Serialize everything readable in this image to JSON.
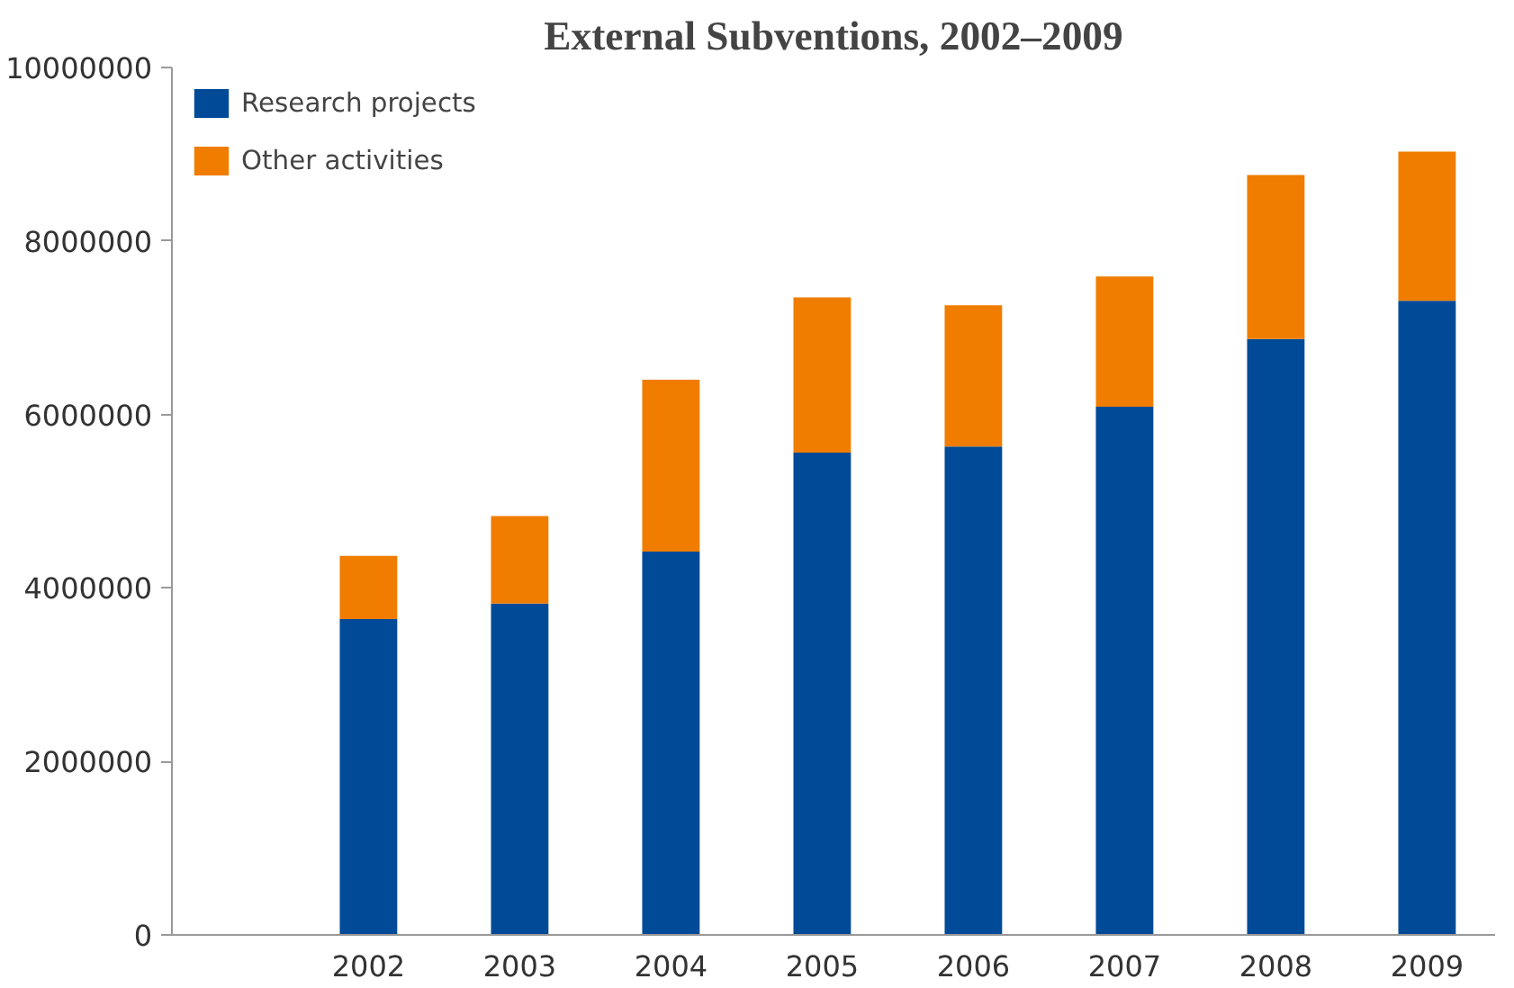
{
  "chart_data": {
    "type": "bar",
    "title": "External Subventions, 2002–2009",
    "stacked": true,
    "categories": [
      "2002",
      "2003",
      "2004",
      "2005",
      "2006",
      "2007",
      "2008",
      "2009"
    ],
    "series": [
      {
        "name": "Research projects",
        "color": "#004a97",
        "values": [
          3640000,
          3820000,
          4420000,
          5560000,
          5630000,
          6090000,
          6870000,
          7310000
        ]
      },
      {
        "name": "Other activities",
        "color": "#f07d00",
        "values": [
          730000,
          1010000,
          1980000,
          1790000,
          1630000,
          1500000,
          1890000,
          1720000
        ]
      }
    ],
    "ylim": [
      0,
      10000000
    ],
    "yticks": [
      0,
      2000000,
      4000000,
      6000000,
      8000000,
      10000000
    ],
    "grid": false,
    "legend": "top left"
  }
}
